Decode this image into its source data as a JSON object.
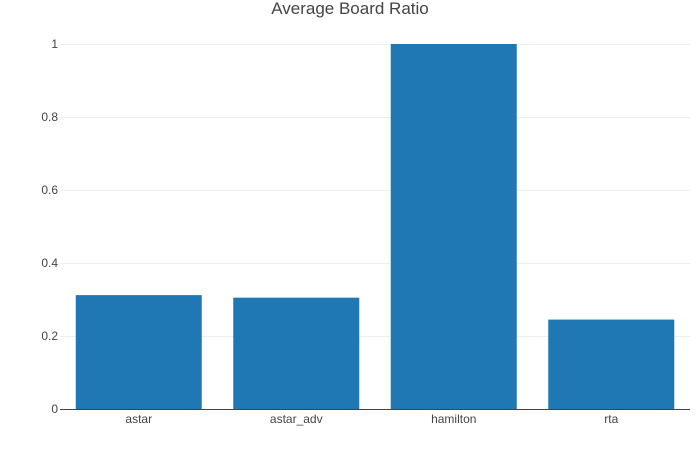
{
  "chart_data": {
    "type": "bar",
    "title": "Average Board Ratio",
    "xlabel": "",
    "ylabel": "",
    "categories": [
      "astar",
      "astar_adv",
      "hamilton",
      "rta"
    ],
    "values": [
      0.312,
      0.305,
      1.0,
      0.245
    ],
    "ylim": [
      0,
      1
    ],
    "yticks": [
      0,
      0.2,
      0.4,
      0.6,
      0.8,
      1
    ],
    "ytick_labels": [
      "0",
      "0.2",
      "0.4",
      "0.6",
      "0.8",
      "1"
    ],
    "grid": true,
    "legend": "none",
    "bar_color": "#1f77b4"
  }
}
